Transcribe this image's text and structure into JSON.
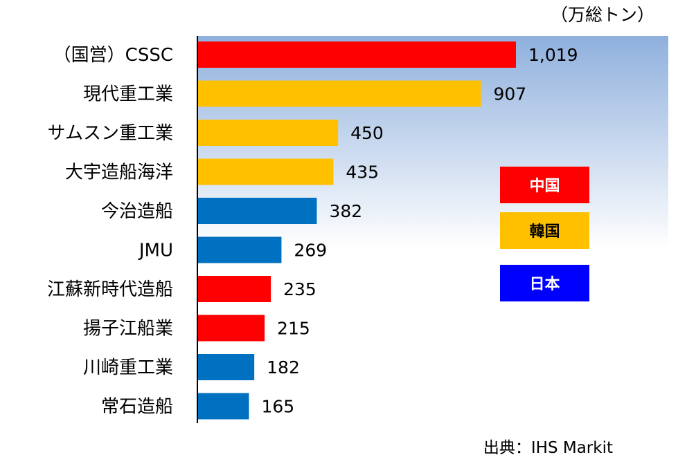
{
  "chart_data": {
    "type": "bar",
    "orientation": "horizontal",
    "unit_label": "（万総トン）",
    "source": "出典：IHS Markit",
    "categories": [
      "（国営）CSSC",
      "現代重工業",
      "サムスン重工業",
      "大宇造船海洋",
      "今治造船",
      "JMU",
      "江蘇新時代造船",
      "揚子江船業",
      "川崎重工業",
      "常石造船"
    ],
    "values": [
      1019,
      907,
      450,
      435,
      382,
      269,
      235,
      215,
      182,
      165
    ],
    "value_labels": [
      "1,019",
      "907",
      "450",
      "435",
      "382",
      "269",
      "235",
      "215",
      "182",
      "165"
    ],
    "groups": [
      "中国",
      "韓国",
      "韓国",
      "韓国",
      "日本",
      "日本",
      "中国",
      "中国",
      "日本",
      "日本"
    ],
    "legend": [
      {
        "label": "中国",
        "color": "#ff0000"
      },
      {
        "label": "韓国",
        "color": "#ffc000"
      },
      {
        "label": "日本",
        "color": "#0000ff"
      }
    ],
    "bar_colors": {
      "中国": "#ff0000",
      "韓国": "#ffc000",
      "日本": "#0070c0"
    },
    "legend_placement": "right",
    "background": "gradient light blue to white",
    "grid": false
  }
}
